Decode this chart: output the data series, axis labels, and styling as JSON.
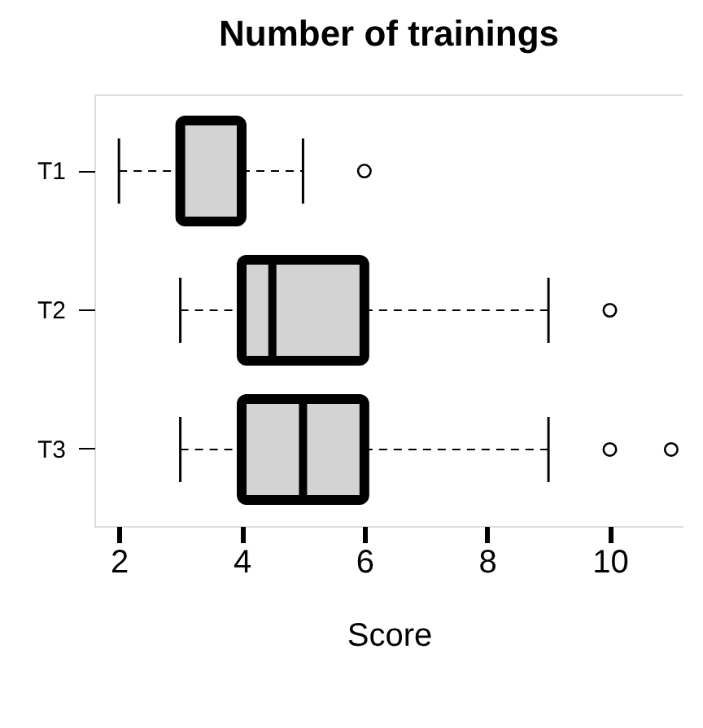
{
  "chart_data": {
    "type": "box",
    "title": "Number of trainings",
    "xlabel": "Score",
    "orientation": "horizontal",
    "categories": [
      "T1",
      "T2",
      "T3"
    ],
    "boxes": [
      {
        "low": 2,
        "q1": 3,
        "median": 3,
        "q3": 4,
        "high": 5,
        "outliers": [
          6
        ]
      },
      {
        "low": 3,
        "q1": 4,
        "median": 4.5,
        "q3": 6,
        "high": 9,
        "outliers": [
          10
        ]
      },
      {
        "low": 3,
        "q1": 4,
        "median": 5,
        "q3": 6,
        "high": 9,
        "outliers": [
          10,
          11
        ]
      }
    ],
    "color": "#d3d3d3",
    "xlim": [
      1.6,
      11.2
    ],
    "xticks": [
      2,
      4,
      6,
      8,
      10
    ],
    "grid": false
  }
}
